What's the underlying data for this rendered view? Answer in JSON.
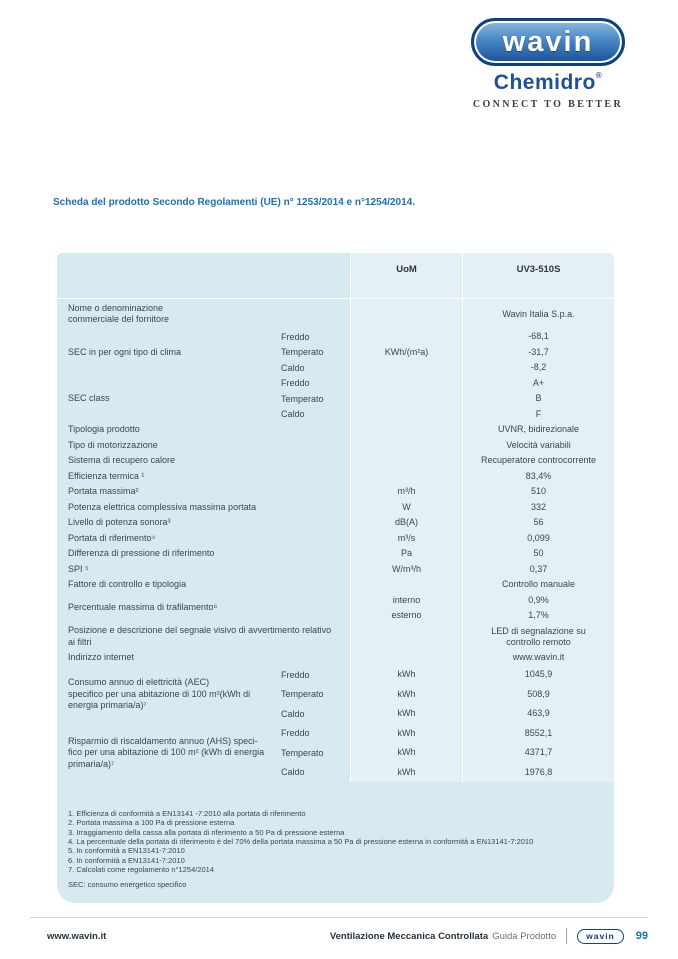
{
  "page": {
    "logo": {
      "wavin": "wavin",
      "chemidro": "Chemidro",
      "registered": "®",
      "tagline": "CONNECT TO BETTER"
    },
    "heading": "Scheda del prodotto Secondo Regolamenti (UE) n° 1253/2014 e n°1254/2014.",
    "footer": {
      "left": "www.wavin.it",
      "right_bold": "Ventilazione Meccanica Controllata",
      "right_regular": "Guida Prodotto",
      "logo": "wavin",
      "page_number": "99"
    }
  },
  "colors": {
    "table_background": "#d7eaf2",
    "heading_blue": "#1c70b7",
    "brand_navy": "#0e4184",
    "text": "#3f4648"
  },
  "table": {
    "header": {
      "uom": "UoM",
      "product": "UV3-510S"
    },
    "groups": [
      {
        "label": "Nome o denominazione\ncommerciale del fornitore",
        "lines": [
          {
            "sub": "",
            "uom": "",
            "value": "Wavin Italia S.p.a."
          }
        ]
      },
      {
        "label": "SEC in per ogni tipo di clima",
        "lines": [
          {
            "sub": "Freddo",
            "uom": "",
            "value": "-68,1"
          },
          {
            "sub": "Temperato",
            "uom": "KWh/(m²a)",
            "value": "-31,7"
          },
          {
            "sub": "Caldo",
            "uom": "",
            "value": "-8,2"
          }
        ]
      },
      {
        "label": "SEC class",
        "lines": [
          {
            "sub": "Freddo",
            "uom": "",
            "value": "A+"
          },
          {
            "sub": "Temperato",
            "uom": "",
            "value": "B"
          },
          {
            "sub": "Caldo",
            "uom": "",
            "value": "F"
          }
        ]
      },
      {
        "label": "Tipologia prodotto",
        "lines": [
          {
            "sub": "",
            "uom": "",
            "value": "UVNR, bidirezionale"
          }
        ]
      },
      {
        "label": "Tipo di motorizzazione",
        "lines": [
          {
            "sub": "",
            "uom": "",
            "value": "Velocità variabili"
          }
        ]
      },
      {
        "label": "Sistema di recupero calore",
        "lines": [
          {
            "sub": "",
            "uom": "",
            "value": "Recuperatore controcorrente"
          }
        ]
      },
      {
        "label": "Efficienza termica ¹",
        "lines": [
          {
            "sub": "",
            "uom": "",
            "value": "83,4%"
          }
        ]
      },
      {
        "label": "Portata massima²",
        "lines": [
          {
            "sub": "",
            "uom": "m³/h",
            "value": "510"
          }
        ]
      },
      {
        "label": "Potenza elettrica complessiva massima portata",
        "lines": [
          {
            "sub": "",
            "uom": "W",
            "value": "332"
          }
        ]
      },
      {
        "label": "Livello di potenza sonora³",
        "lines": [
          {
            "sub": "",
            "uom": "dB(A)",
            "value": "56"
          }
        ]
      },
      {
        "label": "Portata di riferimento⁴",
        "lines": [
          {
            "sub": "",
            "uom": "m³/s",
            "value": "0,099"
          }
        ]
      },
      {
        "label": "Differenza di pressione di riferimento",
        "lines": [
          {
            "sub": "",
            "uom": "Pa",
            "value": "50"
          }
        ]
      },
      {
        "label": "SPI ⁵",
        "lines": [
          {
            "sub": "",
            "uom": "W/m³/h",
            "value": "0,37"
          }
        ]
      },
      {
        "label": "Fattore di controllo e tipologia",
        "lines": [
          {
            "sub": "",
            "uom": "",
            "value": "Controllo manuale"
          }
        ]
      },
      {
        "label": "Percentuale massima di trafilamento⁶",
        "lines": [
          {
            "sub": "",
            "uom": "interno",
            "value": "0,9%"
          },
          {
            "sub": "",
            "uom": "esterno",
            "value": "1,7%"
          }
        ]
      },
      {
        "label": "Posizione e descrizione del segnale visivo di avvertimento relativo\nai filtri",
        "lines": [
          {
            "sub": "",
            "uom": "",
            "value": "LED di segnalazione su\ncontrollo remoto"
          }
        ]
      },
      {
        "label": "Indirizzo internet",
        "lines": [
          {
            "sub": "",
            "uom": "",
            "value": "www.wavin.it"
          }
        ]
      },
      {
        "label": "Consumo annuo di elettricità (AEC)\nspecifico per una abitazione di 100 m²(kWh di\nenergia primaria/a)⁷",
        "lines": [
          {
            "sub": "Freddo",
            "uom": "kWh",
            "value": "1045,9"
          },
          {
            "sub": "Temperato",
            "uom": "kWh",
            "value": "508,9"
          },
          {
            "sub": "Caldo",
            "uom": "kWh",
            "value": "463,9"
          }
        ]
      },
      {
        "label": "Risparmio di riscaldamento annuo (AHS) speci-\nfico per una abitazione di 100 m² (kWh di energia\nprimaria/a)⁷",
        "lines": [
          {
            "sub": "Freddo",
            "uom": "kWh",
            "value": "8552,1"
          },
          {
            "sub": "Temperato",
            "uom": "kWh",
            "value": "4371,7"
          },
          {
            "sub": "Caldo",
            "uom": "kWh",
            "value": "1976,8"
          }
        ]
      }
    ],
    "footnotes": [
      "1. Efficienza di conformità a EN13141 -7:2010 alla portata di riferimento",
      "2. Portata massima a 100 Pa di pressione esterna",
      "3. Irraggiamento della cassa alla portata di riferimento a 50 Pa di pressione esterna",
      "4. La percentuale della portata di riferimento è del 70% della portata massima a 50 Pa di pressione esterna in conformità a EN13141-7:2010",
      "5. In conformità a EN13141-7:2010",
      "6. In conformità a EN13141-7:2010",
      "7. Calcolati come regolamento n°1254/2014"
    ],
    "sec_note": "SEC: consumo energetico specifico"
  }
}
